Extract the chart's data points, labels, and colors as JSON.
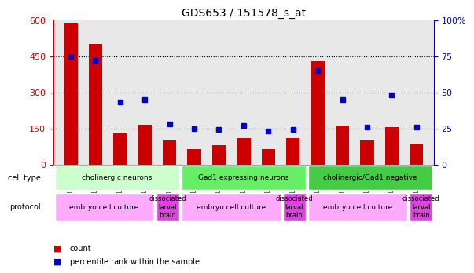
{
  "title": "GDS653 / 151578_s_at",
  "samples": [
    "GSM16944",
    "GSM16945",
    "GSM16946",
    "GSM16947",
    "GSM16948",
    "GSM16951",
    "GSM16952",
    "GSM16953",
    "GSM16954",
    "GSM16956",
    "GSM16893",
    "GSM16894",
    "GSM16949",
    "GSM16950",
    "GSM16955"
  ],
  "counts": [
    590,
    500,
    130,
    165,
    100,
    65,
    80,
    110,
    65,
    110,
    430,
    160,
    100,
    155,
    85
  ],
  "percentiles": [
    75,
    72,
    43,
    45,
    28,
    25,
    24,
    27,
    23,
    24,
    65,
    45,
    26,
    48,
    26
  ],
  "ylim_left": [
    0,
    600
  ],
  "ylim_right": [
    0,
    100
  ],
  "yticks_left": [
    0,
    150,
    300,
    450,
    600
  ],
  "yticks_right": [
    0,
    25,
    50,
    75,
    100
  ],
  "bar_color": "#cc0000",
  "dot_color": "#0000cc",
  "cell_types": [
    {
      "label": "cholinergic neurons",
      "start": 0,
      "end": 5,
      "color": "#ccffcc"
    },
    {
      "label": "Gad1 expressing neurons",
      "start": 5,
      "end": 10,
      "color": "#66dd66"
    },
    {
      "label": "cholinergic/Gad1 negative",
      "start": 10,
      "end": 15,
      "color": "#00cc00"
    }
  ],
  "protocols": [
    {
      "label": "embryo cell culture",
      "start": 0,
      "end": 4,
      "color": "#ffaaff"
    },
    {
      "label": "dissociated\nlarval\nbrain",
      "start": 4,
      "end": 5,
      "color": "#ff88ff"
    },
    {
      "label": "embryo cell culture",
      "start": 5,
      "end": 9,
      "color": "#ffaaff"
    },
    {
      "label": "dissociated\nlarval\nbrain",
      "start": 9,
      "end": 10,
      "color": "#ff88ff"
    },
    {
      "label": "embryo cell culture",
      "start": 10,
      "end": 14,
      "color": "#ffaaff"
    },
    {
      "label": "dissociated\nlarval\nbrain",
      "start": 14,
      "end": 15,
      "color": "#ff88ff"
    }
  ],
  "grid_style": "dotted",
  "bg_color": "#e8e8e8",
  "xlabel_color": "#333333",
  "left_axis_color": "#cc0000",
  "right_axis_color": "#0000cc"
}
